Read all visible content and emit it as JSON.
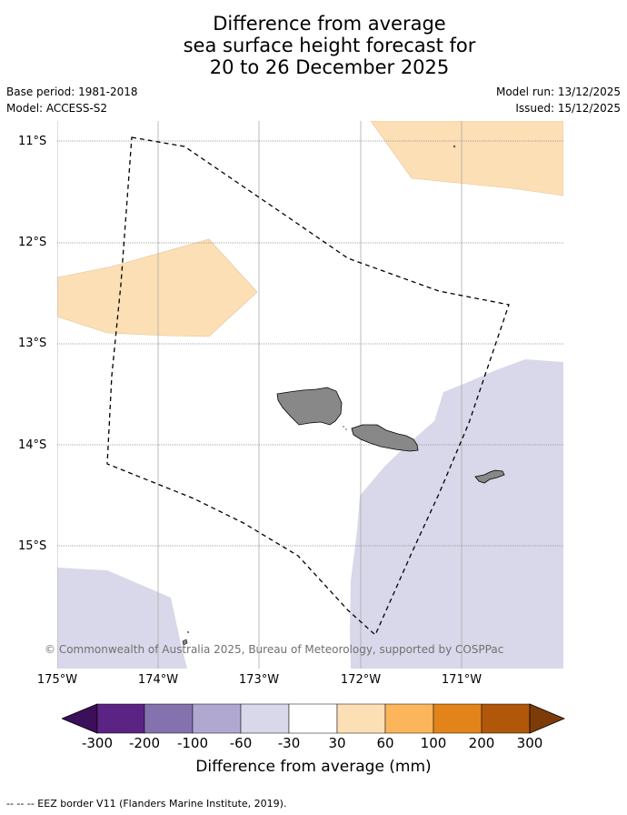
{
  "title_lines": [
    "Difference from average",
    "sea surface height forecast for",
    "20 to 26 December 2025"
  ],
  "meta": {
    "base_period": "Base period: 1981-2018",
    "model": "Model: ACCESS-S2",
    "model_run": "Model run: 13/12/2025",
    "issued": "Issued: 15/12/2025"
  },
  "map": {
    "lon_range": [
      -175,
      -170
    ],
    "lat_range": [
      -16.2,
      -10.8
    ],
    "lat_ticks": [
      {
        "value": -11,
        "label": "11°S"
      },
      {
        "value": -12,
        "label": "12°S"
      },
      {
        "value": -13,
        "label": "13°S"
      },
      {
        "value": -14,
        "label": "14°S"
      },
      {
        "value": -15,
        "label": "15°S"
      }
    ],
    "lon_ticks": [
      {
        "value": -175,
        "label": "175°W"
      },
      {
        "value": -174,
        "label": "174°W"
      },
      {
        "value": -173,
        "label": "173°W"
      },
      {
        "value": -172,
        "label": "172°W"
      },
      {
        "value": -171,
        "label": "171°W"
      }
    ],
    "copyright": "© Commonwealth of Australia 2025, Bureau of Meteorology, supported by COSPPac",
    "colors": {
      "land": "#888888",
      "pos_30_60": "#fddfb5",
      "neg_60_30": "#d8d8ea",
      "eez": "#000000",
      "grid": "#aaaaaa"
    }
  },
  "colorbar": {
    "ticks": [
      "-300",
      "-200",
      "-100",
      "-60",
      "-30",
      "30",
      "60",
      "100",
      "200",
      "300"
    ],
    "colors": [
      "#3b0f59",
      "#5b2384",
      "#8472ae",
      "#b1a8d2",
      "#d8d8ea",
      "#ffffff",
      "#fddfb5",
      "#fbb55b",
      "#e2841a",
      "#b15709",
      "#7e3b0a"
    ],
    "label": "Difference from average (mm)"
  },
  "footer": "--  --  -- EEZ border V11 (Flanders Marine Institute, 2019)."
}
